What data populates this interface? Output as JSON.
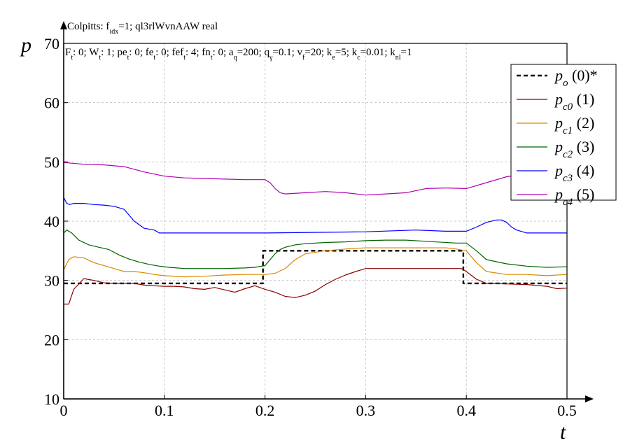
{
  "chart_data": {
    "type": "line",
    "title": "Colpitts: f",
    "title_sub": "idx",
    "title_rest": "=1; ql3rlWvnAAW real",
    "params_line": [
      {
        "t": "F"
      },
      {
        "t": "t",
        "sub": true
      },
      {
        "t": ": 0; W"
      },
      {
        "t": "t",
        "sub": true
      },
      {
        "t": ": 1; pe"
      },
      {
        "t": "t",
        "sub": true
      },
      {
        "t": ": 0; fe"
      },
      {
        "t": "t",
        "sub": true
      },
      {
        "t": ": 0; fef"
      },
      {
        "t": "t",
        "sub": true
      },
      {
        "t": ": 4; fn"
      },
      {
        "t": "t",
        "sub": true
      },
      {
        "t": ": 0; a"
      },
      {
        "t": "q",
        "sub": true
      },
      {
        "t": "=200; q"
      },
      {
        "t": "γ",
        "sub": true
      },
      {
        "t": "=0.1; v"
      },
      {
        "t": "f",
        "sub": true
      },
      {
        "t": "=20; k"
      },
      {
        "t": "e",
        "sub": true
      },
      {
        "t": "=5; k"
      },
      {
        "t": "c",
        "sub": true
      },
      {
        "t": "=0.01; k"
      },
      {
        "t": "nl",
        "sub": true
      },
      {
        "t": "=1"
      }
    ],
    "xlabel": "t",
    "ylabel": "p",
    "xlim": [
      0,
      0.5
    ],
    "ylim": [
      10,
      70
    ],
    "xticks": [
      "0",
      "0.1",
      "0.2",
      "0.3",
      "0.4",
      "0.5"
    ],
    "xtick_values": [
      0,
      0.1,
      0.2,
      0.3,
      0.4,
      0.5
    ],
    "yticks": [
      "10",
      "20",
      "30",
      "40",
      "50",
      "60",
      "70"
    ],
    "ytick_values": [
      10,
      20,
      30,
      40,
      50,
      60,
      70
    ],
    "grid": true,
    "legend_position": "top-right",
    "series": [
      {
        "name": "p",
        "name_sub": "o",
        "name_suffix": " (0)*",
        "color": "#000000",
        "dashed": true,
        "x": [
          0,
          0.198,
          0.198,
          0.397,
          0.397,
          0.5
        ],
        "y": [
          29.5,
          29.5,
          35.0,
          35.0,
          29.5,
          29.5
        ]
      },
      {
        "name": "p",
        "name_sub": "c0",
        "name_suffix": " (1)",
        "color": "#8b0000",
        "dashed": false,
        "x": [
          0,
          0.005,
          0.01,
          0.02,
          0.03,
          0.04,
          0.05,
          0.06,
          0.07,
          0.08,
          0.09,
          0.1,
          0.11,
          0.12,
          0.13,
          0.14,
          0.15,
          0.16,
          0.17,
          0.18,
          0.19,
          0.2,
          0.21,
          0.22,
          0.23,
          0.24,
          0.25,
          0.26,
          0.27,
          0.28,
          0.29,
          0.3,
          0.31,
          0.32,
          0.35,
          0.38,
          0.395,
          0.4,
          0.41,
          0.42,
          0.44,
          0.46,
          0.48,
          0.49,
          0.5
        ],
        "y": [
          26.0,
          26.0,
          28.5,
          30.3,
          30.0,
          29.6,
          29.5,
          29.5,
          29.5,
          29.2,
          29.1,
          29.0,
          29.0,
          28.9,
          28.6,
          28.5,
          28.8,
          28.4,
          28.0,
          28.6,
          29.1,
          28.5,
          28.0,
          27.3,
          27.1,
          27.5,
          28.2,
          29.3,
          30.2,
          30.9,
          31.5,
          32.0,
          32.0,
          32.0,
          32.0,
          32.0,
          32.0,
          31.5,
          30.2,
          29.5,
          29.4,
          29.3,
          29.0,
          28.6,
          28.7
        ]
      },
      {
        "name": "p",
        "name_sub": "c1",
        "name_suffix": " (2)",
        "color": "#d88a00",
        "dashed": false,
        "x": [
          0,
          0.005,
          0.01,
          0.02,
          0.03,
          0.04,
          0.05,
          0.06,
          0.07,
          0.08,
          0.09,
          0.1,
          0.12,
          0.14,
          0.16,
          0.18,
          0.19,
          0.2,
          0.21,
          0.22,
          0.23,
          0.24,
          0.26,
          0.28,
          0.3,
          0.33,
          0.35,
          0.38,
          0.39,
          0.4,
          0.41,
          0.42,
          0.44,
          0.46,
          0.48,
          0.5
        ],
        "y": [
          31.8,
          33.5,
          34.0,
          33.8,
          33.0,
          32.5,
          32.0,
          31.5,
          31.5,
          31.3,
          31.0,
          30.8,
          30.6,
          30.7,
          30.9,
          31.0,
          31.0,
          31.0,
          31.2,
          32.0,
          33.5,
          34.5,
          35.0,
          35.3,
          35.5,
          35.5,
          35.5,
          35.5,
          35.3,
          35.0,
          33.0,
          31.5,
          31.0,
          31.0,
          30.8,
          31.0
        ]
      },
      {
        "name": "p",
        "name_sub": "c2",
        "name_suffix": " (3)",
        "color": "#006400",
        "dashed": false,
        "x": [
          0,
          0.003,
          0.008,
          0.015,
          0.025,
          0.035,
          0.045,
          0.055,
          0.065,
          0.075,
          0.085,
          0.095,
          0.105,
          0.12,
          0.14,
          0.16,
          0.18,
          0.19,
          0.2,
          0.205,
          0.21,
          0.215,
          0.22,
          0.23,
          0.24,
          0.26,
          0.28,
          0.3,
          0.32,
          0.34,
          0.36,
          0.38,
          0.39,
          0.4,
          0.41,
          0.42,
          0.44,
          0.46,
          0.48,
          0.5
        ],
        "y": [
          38.0,
          38.5,
          38.0,
          36.8,
          36.0,
          35.6,
          35.2,
          34.3,
          33.6,
          33.1,
          32.7,
          32.4,
          32.2,
          32.0,
          32.0,
          32.0,
          32.1,
          32.2,
          32.5,
          33.5,
          34.5,
          35.2,
          35.6,
          36.0,
          36.2,
          36.4,
          36.5,
          36.7,
          36.8,
          36.8,
          36.6,
          36.4,
          36.3,
          36.3,
          35.0,
          33.5,
          32.8,
          32.4,
          32.2,
          32.3
        ]
      },
      {
        "name": "p",
        "name_sub": "c3",
        "name_suffix": " (4)",
        "color": "#0000ff",
        "dashed": false,
        "x": [
          0,
          0.003,
          0.006,
          0.01,
          0.02,
          0.03,
          0.04,
          0.05,
          0.06,
          0.065,
          0.07,
          0.08,
          0.09,
          0.095,
          0.1,
          0.2,
          0.3,
          0.35,
          0.38,
          0.4,
          0.41,
          0.42,
          0.43,
          0.435,
          0.44,
          0.445,
          0.45,
          0.46,
          0.5
        ],
        "y": [
          44.0,
          43.0,
          42.8,
          43.0,
          43.0,
          42.8,
          42.7,
          42.5,
          42.0,
          41.0,
          40.0,
          38.8,
          38.5,
          38.0,
          38.0,
          38.0,
          38.2,
          38.5,
          38.3,
          38.3,
          39.0,
          39.8,
          40.2,
          40.2,
          39.8,
          39.0,
          38.5,
          38.0,
          38.0
        ]
      },
      {
        "name": "p",
        "name_sub": "c4",
        "name_suffix": " (5)",
        "color": "#b000b0",
        "dashed": false,
        "x": [
          0,
          0.02,
          0.04,
          0.06,
          0.08,
          0.1,
          0.12,
          0.14,
          0.16,
          0.18,
          0.2,
          0.205,
          0.21,
          0.215,
          0.22,
          0.24,
          0.26,
          0.28,
          0.3,
          0.32,
          0.34,
          0.36,
          0.38,
          0.4,
          0.42,
          0.44,
          0.46,
          0.48,
          0.5
        ],
        "y": [
          49.9,
          49.6,
          49.5,
          49.2,
          48.3,
          47.6,
          47.3,
          47.2,
          47.1,
          47.0,
          47.0,
          46.5,
          45.5,
          44.8,
          44.6,
          44.8,
          45.0,
          44.8,
          44.4,
          44.6,
          44.8,
          45.5,
          45.6,
          45.5,
          46.5,
          47.5,
          48.0,
          48.2,
          48.3
        ]
      }
    ]
  }
}
